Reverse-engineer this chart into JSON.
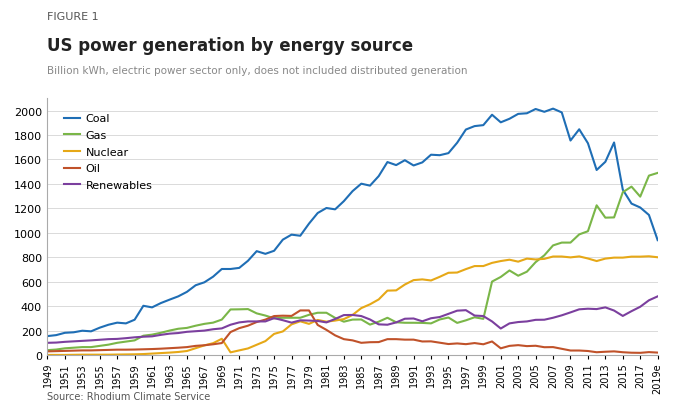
{
  "figure_label": "FIGURE 1",
  "title": "US power generation by energy source",
  "subtitle": "Billion kWh, electric power sector only, does not included distributed generation",
  "source": "Source: Rhodium Climate Service",
  "years": [
    1949,
    1950,
    1951,
    1952,
    1953,
    1954,
    1955,
    1956,
    1957,
    1958,
    1959,
    1960,
    1961,
    1962,
    1963,
    1964,
    1965,
    1966,
    1967,
    1968,
    1969,
    1970,
    1971,
    1972,
    1973,
    1974,
    1975,
    1976,
    1977,
    1978,
    1979,
    1980,
    1981,
    1982,
    1983,
    1984,
    1985,
    1986,
    1987,
    1988,
    1989,
    1990,
    1991,
    1992,
    1993,
    1994,
    1995,
    1996,
    1997,
    1998,
    1999,
    2000,
    2001,
    2002,
    2003,
    2004,
    2005,
    2006,
    2007,
    2008,
    2009,
    2010,
    2011,
    2012,
    2013,
    2014,
    2015,
    2016,
    2017,
    2018,
    "2019e"
  ],
  "coal": [
    155,
    163,
    182,
    186,
    199,
    194,
    224,
    248,
    265,
    259,
    289,
    403,
    390,
    425,
    453,
    480,
    517,
    571,
    595,
    641,
    704,
    704,
    713,
    771,
    850,
    828,
    853,
    944,
    985,
    976,
    1075,
    1162,
    1203,
    1192,
    1259,
    1341,
    1402,
    1386,
    1464,
    1579,
    1554,
    1594,
    1551,
    1576,
    1639,
    1635,
    1652,
    1737,
    1845,
    1873,
    1881,
    1966,
    1904,
    1933,
    1973,
    1978,
    2013,
    1990,
    2016,
    1985,
    1755,
    1847,
    1733,
    1514,
    1581,
    1739,
    1353,
    1239,
    1207,
    1146,
    940
  ],
  "gas": [
    40,
    45,
    55,
    60,
    65,
    65,
    75,
    85,
    100,
    110,
    120,
    158,
    167,
    182,
    200,
    215,
    222,
    240,
    255,
    265,
    290,
    373,
    374,
    376,
    341,
    323,
    300,
    305,
    305,
    305,
    329,
    346,
    346,
    304,
    273,
    290,
    291,
    249,
    273,
    305,
    268,
    264,
    264,
    263,
    259,
    291,
    307,
    263,
    284,
    309,
    296,
    601,
    639,
    692,
    649,
    682,
    760,
    816,
    897,
    920,
    920,
    987,
    1013,
    1225,
    1124,
    1126,
    1332,
    1378,
    1296,
    1468,
    1490
  ],
  "nuclear": [
    1,
    1,
    1,
    2,
    3,
    3,
    3,
    3,
    4,
    5,
    6,
    8,
    12,
    16,
    20,
    25,
    33,
    56,
    79,
    97,
    133,
    22,
    38,
    54,
    84,
    114,
    173,
    193,
    251,
    276,
    255,
    287,
    273,
    282,
    294,
    328,
    384,
    415,
    455,
    527,
    529,
    577,
    613,
    619,
    610,
    640,
    673,
    675,
    703,
    728,
    728,
    754,
    769,
    780,
    764,
    789,
    782,
    787,
    806,
    806,
    799,
    807,
    790,
    769,
    789,
    797,
    797,
    805,
    805,
    808,
    800
  ],
  "oil": [
    30,
    32,
    34,
    36,
    38,
    38,
    40,
    42,
    44,
    44,
    45,
    47,
    49,
    52,
    56,
    60,
    65,
    75,
    80,
    88,
    98,
    188,
    220,
    240,
    270,
    290,
    319,
    322,
    320,
    365,
    365,
    246,
    206,
    161,
    130,
    120,
    100,
    105,
    106,
    130,
    130,
    126,
    126,
    111,
    112,
    101,
    90,
    95,
    89,
    98,
    88,
    111,
    55,
    75,
    81,
    73,
    76,
    64,
    65,
    51,
    37,
    37,
    33,
    23,
    27,
    30,
    23,
    19,
    18,
    24,
    20
  ],
  "renewables": [
    100,
    102,
    108,
    112,
    116,
    120,
    125,
    130,
    132,
    138,
    145,
    150,
    153,
    165,
    175,
    180,
    190,
    195,
    200,
    211,
    218,
    248,
    267,
    275,
    275,
    275,
    302,
    285,
    265,
    284,
    282,
    279,
    267,
    295,
    327,
    328,
    319,
    291,
    251,
    248,
    267,
    297,
    299,
    276,
    301,
    311,
    337,
    363,
    367,
    323,
    319,
    275,
    217,
    259,
    270,
    275,
    288,
    289,
    305,
    325,
    349,
    374,
    379,
    376,
    390,
    364,
    320,
    359,
    395,
    448,
    480
  ],
  "colors": {
    "coal": "#1f6eb5",
    "gas": "#7ab648",
    "nuclear": "#e6a817",
    "oil": "#c0522a",
    "renewables": "#7b3f9e"
  },
  "ylim": [
    0,
    2100
  ],
  "yticks": [
    0,
    200,
    400,
    600,
    800,
    1000,
    1200,
    1400,
    1600,
    1800,
    2000
  ],
  "background_color": "#ffffff"
}
